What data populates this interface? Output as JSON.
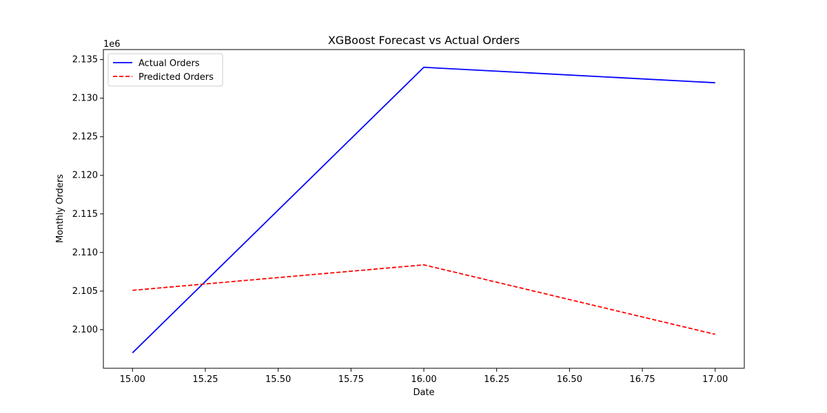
{
  "chart_data": {
    "type": "line",
    "title": "XGBoost Forecast vs Actual Orders",
    "xlabel": "Date",
    "ylabel": "Monthly Orders",
    "y_offset_label": "1e6",
    "y_scale": 1000000,
    "xlim": [
      14.9,
      17.1
    ],
    "ylim": [
      2.095,
      2.1363
    ],
    "x_ticks": [
      15.0,
      15.25,
      15.5,
      15.75,
      16.0,
      16.25,
      16.5,
      16.75,
      17.0
    ],
    "x_tick_labels": [
      "15.00",
      "15.25",
      "15.50",
      "15.75",
      "16.00",
      "16.25",
      "16.50",
      "16.75",
      "17.00"
    ],
    "y_ticks": [
      2.1,
      2.105,
      2.11,
      2.115,
      2.12,
      2.125,
      2.13,
      2.135
    ],
    "y_tick_labels": [
      "2.100",
      "2.105",
      "2.110",
      "2.115",
      "2.120",
      "2.125",
      "2.130",
      "2.135"
    ],
    "grid": false,
    "legend_position": "top-left",
    "x": [
      15,
      16,
      17
    ],
    "series": [
      {
        "name": "Actual Orders",
        "values": [
          2097000,
          2134000,
          2132000
        ],
        "color": "#0000ff",
        "dash": "solid"
      },
      {
        "name": "Predicted Orders",
        "values": [
          2105100,
          2108400,
          2099400
        ],
        "color": "#ff0000",
        "dash": "dashed"
      }
    ]
  }
}
